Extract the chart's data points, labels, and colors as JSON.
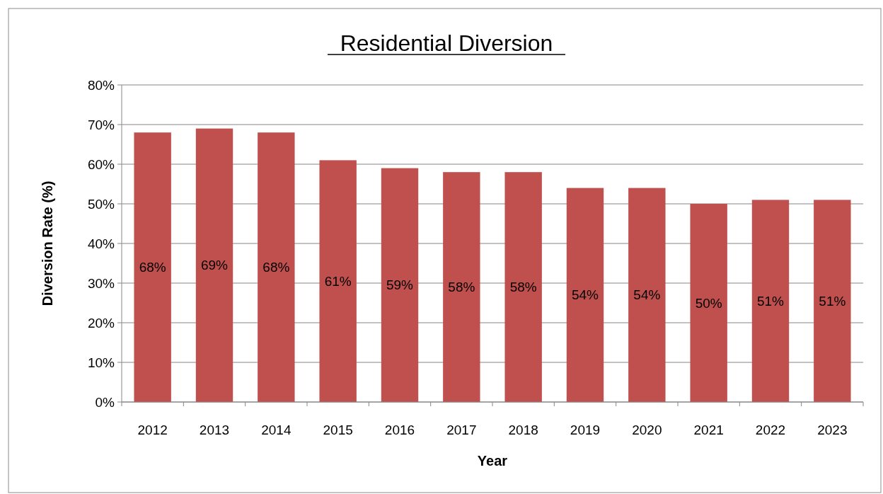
{
  "chart_data": {
    "type": "bar",
    "title": "Residential Diversion",
    "xlabel": "Year",
    "ylabel": "Diversion Rate (%)",
    "categories": [
      "2012",
      "2013",
      "2014",
      "2015",
      "2016",
      "2017",
      "2018",
      "2019",
      "2020",
      "2021",
      "2022",
      "2023"
    ],
    "values": [
      68,
      69,
      68,
      61,
      59,
      58,
      58,
      54,
      54,
      50,
      51,
      51
    ],
    "value_labels": [
      "68%",
      "69%",
      "68%",
      "61%",
      "59%",
      "58%",
      "58%",
      "54%",
      "54%",
      "50%",
      "51%",
      "51%"
    ],
    "color": "#c0504d",
    "ylim": [
      0,
      80
    ],
    "yticks": [
      {
        "value": 0,
        "label": "0%"
      },
      {
        "value": 10,
        "label": "10%"
      },
      {
        "value": 20,
        "label": "20%"
      },
      {
        "value": 30,
        "label": "30%"
      },
      {
        "value": 40,
        "label": "40%"
      },
      {
        "value": 50,
        "label": "50%"
      },
      {
        "value": 60,
        "label": "60%"
      },
      {
        "value": 70,
        "label": "70%"
      },
      {
        "value": 80,
        "label": "80%"
      }
    ],
    "grid": "y"
  }
}
